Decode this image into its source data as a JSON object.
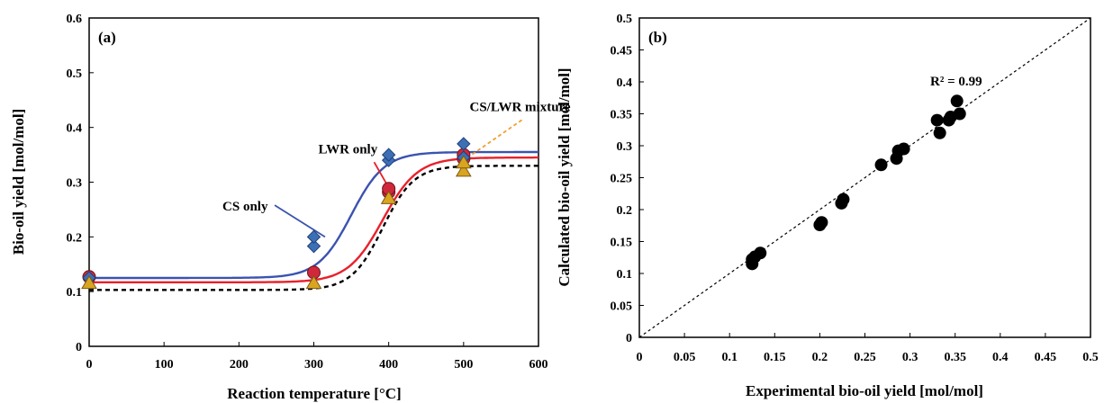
{
  "chart_data": [
    {
      "type": "scatter",
      "panel_label": "(a)",
      "xlabel": "Reaction temperature [°C]",
      "ylabel": "Bio-oil yield [mol/mol]",
      "xlim": [
        0,
        600
      ],
      "ylim": [
        0,
        0.6
      ],
      "xticks": [
        "0",
        "100",
        "200",
        "300",
        "400",
        "500",
        "600"
      ],
      "yticks": [
        "0",
        "0.1",
        "0.2",
        "0.3",
        "0.4",
        "0.5",
        "0.6"
      ],
      "grid": false,
      "series": [
        {
          "marker": "diamond",
          "color": "#3d6fb5",
          "points": [
            [
              0,
              0.125
            ],
            [
              300,
              0.183
            ],
            [
              300,
              0.2
            ],
            [
              400,
              0.34
            ],
            [
              400,
              0.35
            ],
            [
              500,
              0.345
            ],
            [
              500,
              0.37
            ]
          ],
          "fit": {
            "low": 0.125,
            "high": 0.355,
            "mid": 350,
            "k": 0.045
          },
          "fit_color": "#3b53b0",
          "fit_dash": ""
        },
        {
          "marker": "circle",
          "color": "#d0283a",
          "points": [
            [
              0,
              0.127
            ],
            [
              300,
              0.135
            ],
            [
              400,
              0.282
            ],
            [
              400,
              0.288
            ],
            [
              500,
              0.343
            ],
            [
              500,
              0.35
            ]
          ],
          "fit": {
            "low": 0.117,
            "high": 0.345,
            "mid": 392,
            "k": 0.043
          },
          "fit_color": "#e8212b",
          "fit_dash": ""
        },
        {
          "marker": "triangle",
          "color": "#d9a520",
          "points": [
            [
              0,
              0.115
            ],
            [
              300,
              0.115
            ],
            [
              400,
              0.27
            ],
            [
              500,
              0.32
            ],
            [
              500,
              0.335
            ]
          ],
          "fit": {
            "low": 0.103,
            "high": 0.33,
            "mid": 392,
            "k": 0.048
          },
          "fit_color": "#000000",
          "fit_dash": "5,4"
        }
      ],
      "annotations": [
        {
          "text": "CS only",
          "anchor": [
            315,
            0.2
          ],
          "label_at": [
            178,
            0.248
          ],
          "color": "#3b53b0",
          "dash": ""
        },
        {
          "text": "LWR only",
          "anchor": [
            400,
            0.29
          ],
          "label_at": [
            306,
            0.353
          ],
          "color": "#e8212b",
          "dash": ""
        },
        {
          "text": "CS/LWR mixture",
          "anchor": [
            495,
            0.335
          ],
          "label_at": [
            508,
            0.43
          ],
          "color": "#f0a030",
          "dash": "4,3"
        }
      ]
    },
    {
      "type": "scatter",
      "panel_label": "(b)",
      "xlabel": "Experimental bio-oil yield [mol/mol]",
      "ylabel": "Calculated bio-oil yield [mol/mol]",
      "xlim": [
        0,
        0.5
      ],
      "ylim": [
        0,
        0.5
      ],
      "xticks": [
        "0",
        "0.05",
        "0.1",
        "0.15",
        "0.2",
        "0.25",
        "0.3",
        "0.35",
        "0.4",
        "0.45",
        "0.5"
      ],
      "yticks": [
        "0",
        "0.05",
        "0.1",
        "0.15",
        "0.2",
        "0.25",
        "0.3",
        "0.35",
        "0.4",
        "0.45",
        "0.5"
      ],
      "grid": false,
      "annotation": "R² = 0.99",
      "reference_line": {
        "from": [
          0,
          0
        ],
        "to": [
          0.5,
          0.5
        ],
        "dashed": true
      },
      "points": [
        [
          0.125,
          0.115
        ],
        [
          0.125,
          0.122
        ],
        [
          0.128,
          0.126
        ],
        [
          0.134,
          0.132
        ],
        [
          0.2,
          0.176
        ],
        [
          0.202,
          0.18
        ],
        [
          0.224,
          0.21
        ],
        [
          0.226,
          0.216
        ],
        [
          0.268,
          0.27
        ],
        [
          0.285,
          0.28
        ],
        [
          0.287,
          0.292
        ],
        [
          0.293,
          0.295
        ],
        [
          0.33,
          0.34
        ],
        [
          0.333,
          0.32
        ],
        [
          0.343,
          0.34
        ],
        [
          0.345,
          0.345
        ],
        [
          0.352,
          0.37
        ],
        [
          0.355,
          0.35
        ]
      ]
    }
  ]
}
